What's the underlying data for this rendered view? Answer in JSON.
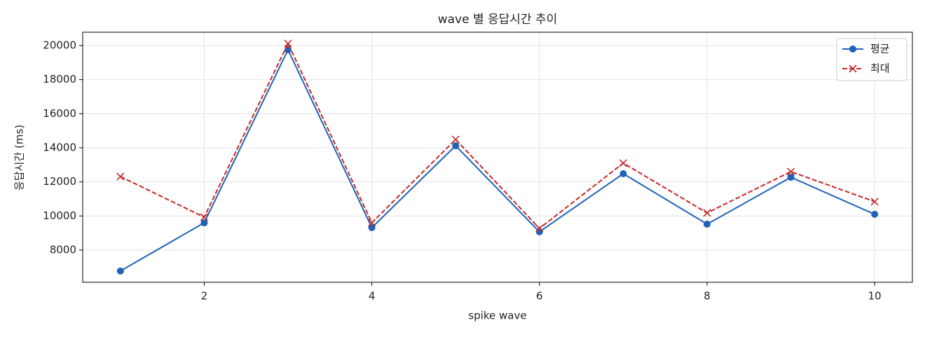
{
  "chart_data": {
    "type": "line",
    "title": "wave 별 응답시간 추이",
    "xlabel": "spike wave",
    "ylabel": "응답시간 (ms)",
    "x": [
      1,
      2,
      3,
      4,
      5,
      6,
      7,
      8,
      9,
      10
    ],
    "series": [
      {
        "name": "평균",
        "color": "#1f63b8",
        "marker": "circle",
        "dash": false,
        "values": [
          6770,
          9600,
          19750,
          9315,
          14120,
          9070,
          12480,
          9520,
          12270,
          10100
        ]
      },
      {
        "name": "최대",
        "color": "#c62828",
        "marker": "x",
        "dash": true,
        "values": [
          12310,
          9930,
          20120,
          9600,
          14490,
          9270,
          13100,
          10180,
          12600,
          10840
        ]
      }
    ],
    "xlim": [
      0.55,
      10.45
    ],
    "ylim": [
      6110,
      20780
    ],
    "xticks": [
      2,
      4,
      6,
      8,
      10
    ],
    "yticks": [
      8000,
      10000,
      12000,
      14000,
      16000,
      18000,
      20000
    ],
    "grid": true,
    "legend": "upper right"
  }
}
